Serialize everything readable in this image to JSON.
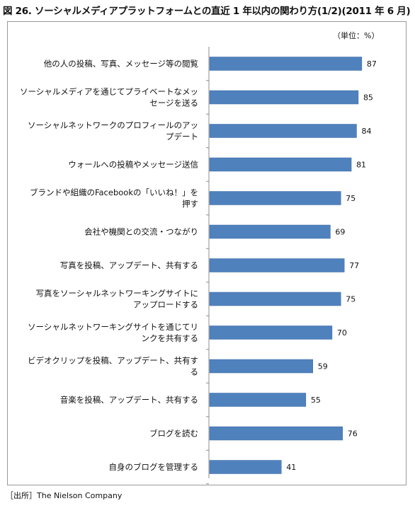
{
  "chart_data": {
    "type": "bar",
    "orientation": "horizontal",
    "title": "図 26. ソーシャルメディアプラットフォームとの直近 1 年以内の関わり方(1/2)(2011 年 6 月)",
    "unit_label": "（単位：%）",
    "source": "［出所］The Nielson Company",
    "bar_color": "#4f81bd",
    "categories": [
      [
        "他の人の投稿、写真、メッセージ等の閲覧"
      ],
      [
        "ソーシャルメディアを通じてプライベートなメッ",
        "セージを送る"
      ],
      [
        "ソーシャルネットワークのプロフィールのアッ",
        "プデート"
      ],
      [
        "ウォールへの投稿やメッセージ送信"
      ],
      [
        "ブランドや組織のFacebookの「いいね！」を",
        "押す"
      ],
      [
        "会社や機関との交流・つながり"
      ],
      [
        "写真を投稿、アップデート、共有する"
      ],
      [
        "写真をソーシャルネットワーキングサイトに",
        "アップロードする"
      ],
      [
        "ソーシャルネットワーキングサイトを通じてリ",
        "ンクを共有する"
      ],
      [
        "ビデオクリップを投稿、アップデート、共有す",
        "る"
      ],
      [
        "音楽を投稿、アップデート、共有する"
      ],
      [
        "ブログを読む"
      ],
      [
        "自身のブログを管理する"
      ]
    ],
    "values": [
      87,
      85,
      84,
      81,
      75,
      69,
      77,
      75,
      70,
      59,
      55,
      76,
      41
    ],
    "xlim": [
      0,
      100
    ],
    "grid": false,
    "legend": "none"
  }
}
